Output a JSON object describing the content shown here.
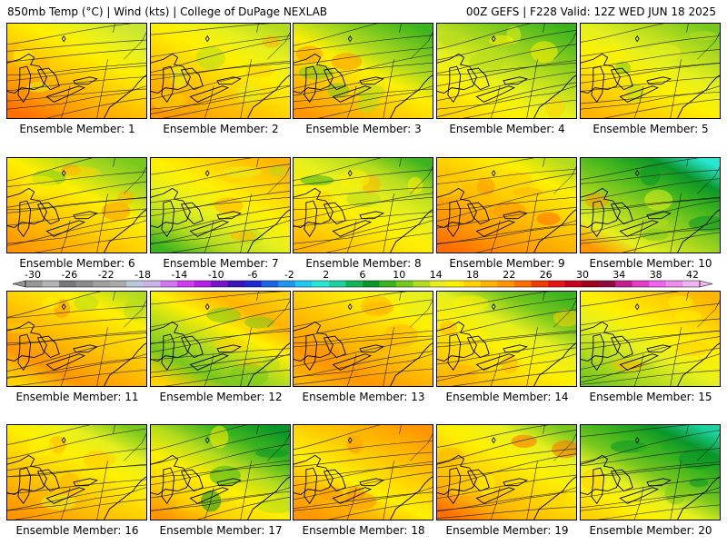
{
  "header": {
    "left": "850mb Temp (°C) | Wind (kts) | College of DuPage NEXLAB",
    "right": "00Z GEFS | F228 Valid: 12Z WED JUN 18 2025"
  },
  "colorbar": {
    "ticks": [
      "-30",
      "-26",
      "-22",
      "-18",
      "-14",
      "-10",
      "-6",
      "-2",
      "2",
      "6",
      "10",
      "14",
      "18",
      "22",
      "26",
      "30",
      "34",
      "38",
      "42"
    ],
    "colors": [
      "#969696",
      "#b4b4b4",
      "#787878",
      "#8c8c8c",
      "#a0a0a0",
      "#aaaaaa",
      "#b9c8dc",
      "#c8b4e6",
      "#d278f0",
      "#d23cf0",
      "#b41ee6",
      "#7814c8",
      "#3c14b4",
      "#1e28d2",
      "#1e64e6",
      "#1e96f0",
      "#1ec8f0",
      "#28e6d2",
      "#1ed2a0",
      "#14b45a",
      "#0a9628",
      "#3cb41e",
      "#78c81e",
      "#b4dc1e",
      "#e6f01e",
      "#fff000",
      "#ffd200",
      "#ffb400",
      "#ff9600",
      "#ff6e00",
      "#f03c00",
      "#e61414",
      "#c8001e",
      "#a0001e",
      "#8c0a3c",
      "#c81e8c",
      "#e63cc8",
      "#f064f0",
      "#f08cf0",
      "#f0b4f0"
    ]
  },
  "panels": [
    {
      "label": "Ensemble Member: 1",
      "field": [
        "#c8e632",
        "#e6f01e",
        "#fff000",
        "#ffd200",
        "#ffb400",
        "#ff9600",
        "#ff6e00"
      ]
    },
    {
      "label": "Ensemble Member: 2",
      "field": [
        "#b4dc1e",
        "#e6f01e",
        "#fff000",
        "#ffd200",
        "#ffb400",
        "#ff9600"
      ]
    },
    {
      "label": "Ensemble Member: 3",
      "field": [
        "#3cb41e",
        "#78c81e",
        "#b4dc1e",
        "#fff000",
        "#ffd200",
        "#ffb400",
        "#ff9600"
      ]
    },
    {
      "label": "Ensemble Member: 4",
      "field": [
        "#3cb41e",
        "#78c81e",
        "#b4dc1e",
        "#e6f01e",
        "#fff000",
        "#ffd200"
      ]
    },
    {
      "label": "Ensemble Member: 5",
      "field": [
        "#78c81e",
        "#b4dc1e",
        "#e6f01e",
        "#fff000",
        "#ffd200",
        "#ffb400"
      ]
    },
    {
      "label": "Ensemble Member: 6",
      "field": [
        "#78c81e",
        "#b4dc1e",
        "#fff000",
        "#ffd200",
        "#ffb400",
        "#ff9600"
      ]
    },
    {
      "label": "Ensemble Member: 7",
      "field": [
        "#ffb400",
        "#ffd200",
        "#fff000",
        "#e6f01e",
        "#b4dc1e",
        "#3cb41e"
      ]
    },
    {
      "label": "Ensemble Member: 8",
      "field": [
        "#3cb41e",
        "#b4dc1e",
        "#e6f01e",
        "#fff000",
        "#ffd200",
        "#ffb400"
      ]
    },
    {
      "label": "Ensemble Member: 9",
      "field": [
        "#b4dc1e",
        "#fff000",
        "#ffd200",
        "#ffb400",
        "#ff9600",
        "#ff6e00"
      ]
    },
    {
      "label": "Ensemble Member: 10",
      "field": [
        "#28e6d2",
        "#0a9628",
        "#3cb41e",
        "#78c81e",
        "#b4dc1e",
        "#e6f01e",
        "#ff9600"
      ]
    },
    {
      "label": "Ensemble Member: 11",
      "field": [
        "#b4dc1e",
        "#fff000",
        "#ffd200",
        "#ffb400",
        "#ff9600",
        "#ffd200"
      ]
    },
    {
      "label": "Ensemble Member: 12",
      "field": [
        "#ffd200",
        "#ffb400",
        "#fff000",
        "#b4dc1e",
        "#78c81e",
        "#ffd200"
      ]
    },
    {
      "label": "Ensemble Member: 13",
      "field": [
        "#e6f01e",
        "#fff000",
        "#ffd200",
        "#ffb400",
        "#ff9600",
        "#ffb400"
      ]
    },
    {
      "label": "Ensemble Member: 14",
      "field": [
        "#3cb41e",
        "#78c81e",
        "#e6f01e",
        "#fff000",
        "#ffd200",
        "#ffb400"
      ]
    },
    {
      "label": "Ensemble Member: 15",
      "field": [
        "#ffb400",
        "#ffd200",
        "#fff000",
        "#e6f01e",
        "#b4dc1e",
        "#78c81e"
      ]
    },
    {
      "label": "Ensemble Member: 16",
      "field": [
        "#78c81e",
        "#e6f01e",
        "#fff000",
        "#ffd200",
        "#ffb400",
        "#ff9600"
      ]
    },
    {
      "label": "Ensemble Member: 17",
      "field": [
        "#0a9628",
        "#3cb41e",
        "#b4dc1e",
        "#fff000",
        "#ffd200",
        "#ff9600"
      ]
    },
    {
      "label": "Ensemble Member: 18",
      "field": [
        "#ff9600",
        "#ffb400",
        "#ffd200",
        "#fff000",
        "#ffb400",
        "#ff9600"
      ]
    },
    {
      "label": "Ensemble Member: 19",
      "field": [
        "#78c81e",
        "#e6f01e",
        "#fff000",
        "#ffd200",
        "#ffb400",
        "#ff6e00"
      ]
    },
    {
      "label": "Ensemble Member: 20",
      "field": [
        "#1ed2a0",
        "#0a9628",
        "#3cb41e",
        "#78c81e",
        "#e6f01e",
        "#fff000",
        "#ffd200"
      ]
    }
  ]
}
